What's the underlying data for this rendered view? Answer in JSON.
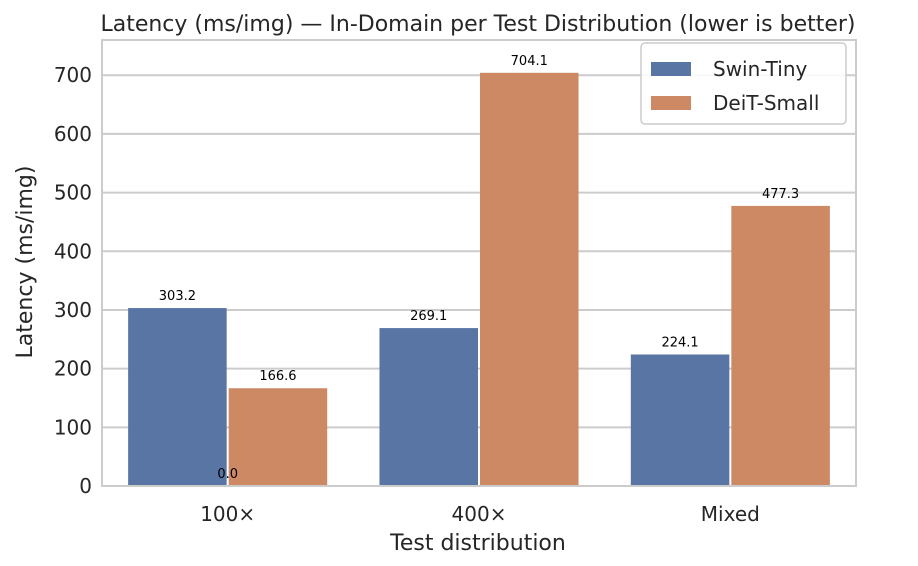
{
  "chart_data": {
    "type": "bar",
    "title": "Latency (ms/img) — In-Domain per Test Distribution (lower is better)",
    "xlabel": "Test distribution",
    "ylabel": "Latency (ms/img)",
    "categories": [
      "100×",
      "400×",
      "Mixed"
    ],
    "series": [
      {
        "name": "Swin-Tiny",
        "values": [
          303.2,
          269.1,
          224.1
        ],
        "labels": [
          "303.2",
          "269.1",
          "224.1"
        ],
        "color": "#5975a4"
      },
      {
        "name": "DeiT-Small",
        "values": [
          166.6,
          704.1,
          477.3
        ],
        "labels": [
          "166.6",
          "704.1",
          "477.3"
        ],
        "color": "#cc8963"
      }
    ],
    "extra_annotation": "0.0",
    "ylim": [
      0,
      760
    ],
    "yticks": [
      0,
      100,
      200,
      300,
      400,
      500,
      600,
      700
    ],
    "grid": true,
    "legend_position": "top-right"
  }
}
